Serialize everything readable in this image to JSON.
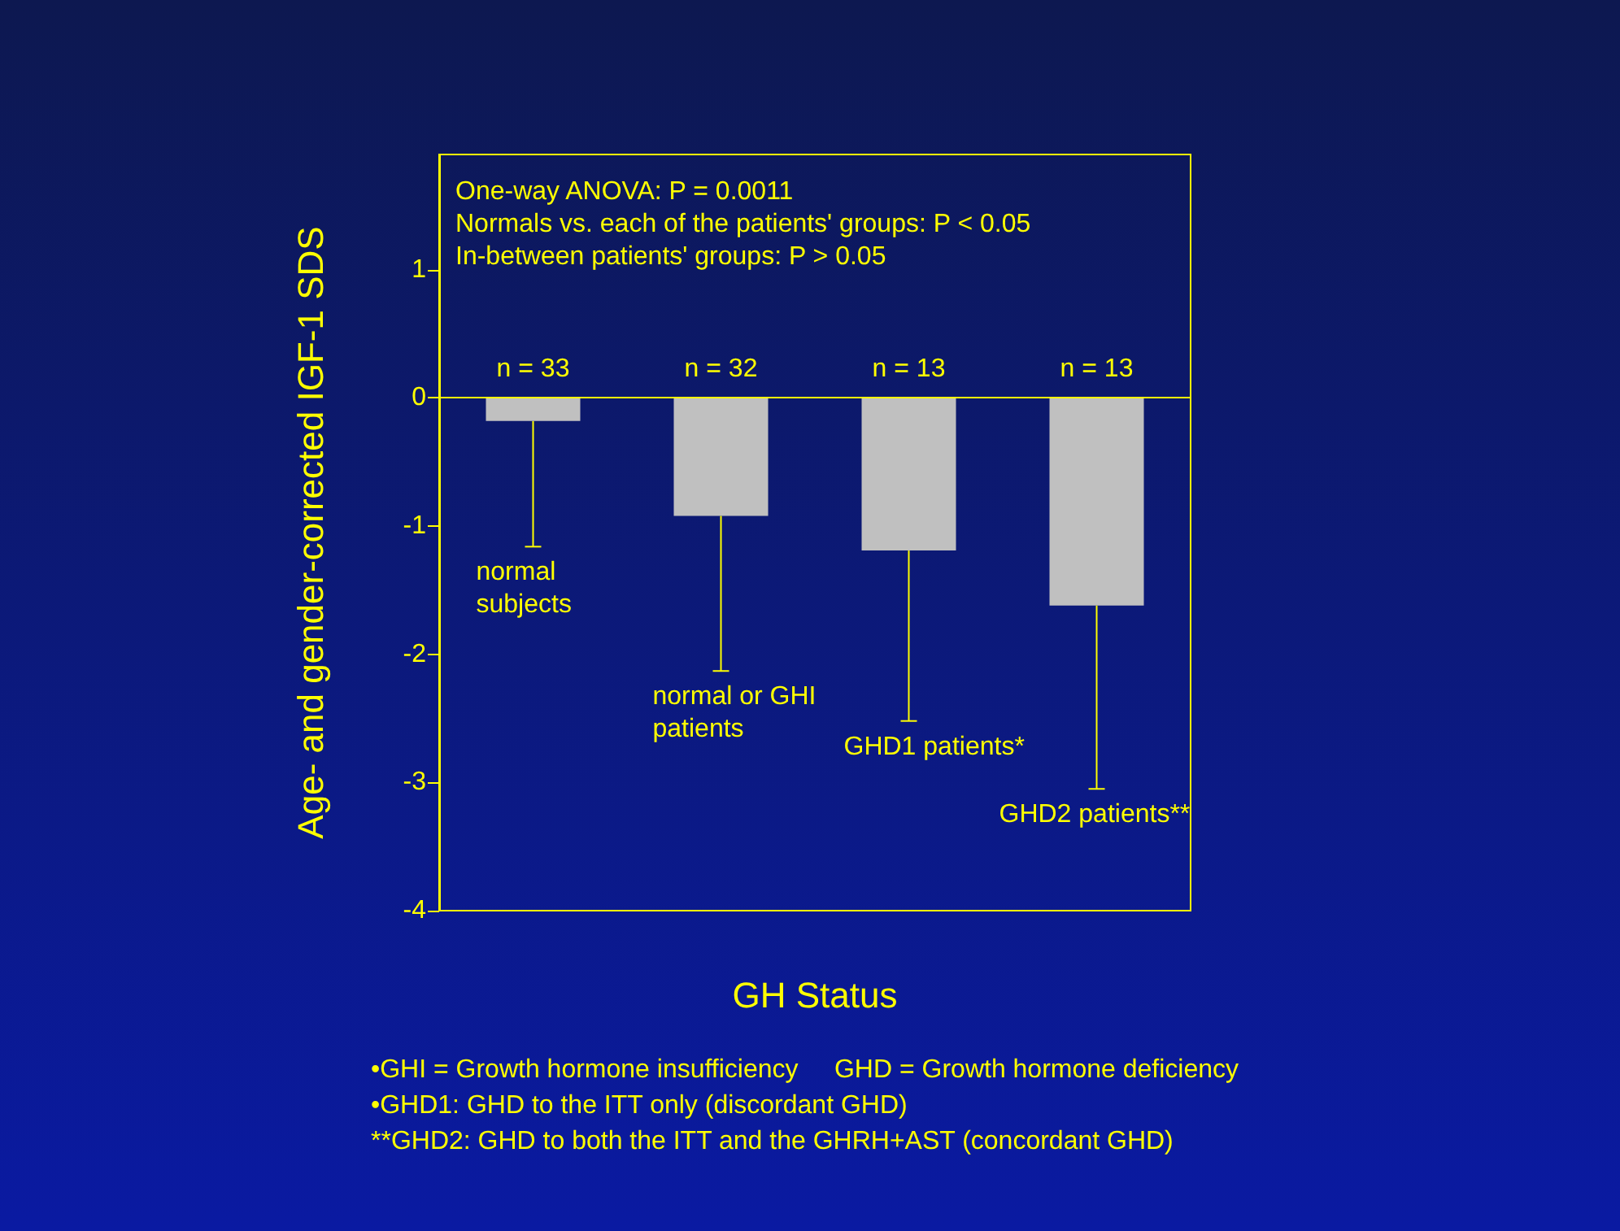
{
  "chart_data": {
    "type": "bar",
    "ylabel": "Age- and gender-corrected IGF-1 SDS",
    "xlabel": "GH Status",
    "categories": [
      "normal subjects",
      "normal or GHI patients",
      "GHD1 patients*",
      "GHD2 patients**"
    ],
    "values": [
      -0.18,
      -0.92,
      -1.19,
      -1.62
    ],
    "errors": [
      [
        -1.16,
        -0.18
      ],
      [
        -2.13,
        -0.92
      ],
      [
        -2.52,
        -1.19
      ],
      [
        -3.05,
        -1.62
      ]
    ],
    "ref_lines": [
      {
        "axis": "y",
        "value": 0,
        "color": "#ffff00"
      }
    ],
    "color": "#c0c0c0",
    "ylim": [
      -4,
      1.9
    ],
    "yticks": [
      -4,
      -3,
      -2,
      -1,
      0,
      1
    ],
    "annotations": [
      "One-way ANOVA: P = 0.0011",
      "Normals vs. each of the patients' groups: P < 0.05",
      "In-between patients' groups: P > 0.05",
      "n = 33",
      "n = 32",
      "n = 13",
      "n = 13",
      "•GHI = Growth hormone insufficiency     GHD = Growth hormone deficiency",
      "•GHD1: GHD to the ITT only (discordant GHD)",
      "**GHD2: GHD to both the ITT and the GHRH+AST (concordant GHD)"
    ]
  }
}
